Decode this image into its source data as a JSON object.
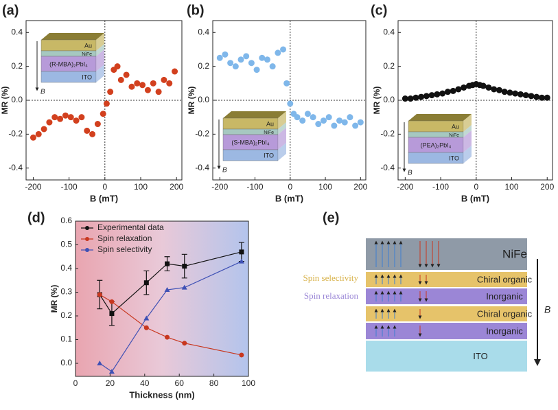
{
  "chart_data": [
    {
      "type": "scatter",
      "panel_label": "(a)",
      "xlabel": "B (mT)",
      "ylabel": "MR (%)",
      "color": "#d2401e",
      "x": [
        -200,
        -185,
        -170,
        -155,
        -140,
        -125,
        -110,
        -95,
        -80,
        -65,
        -50,
        -35,
        -20,
        -5,
        5,
        15,
        25,
        35,
        45,
        60,
        75,
        90,
        105,
        120,
        135,
        150,
        165,
        180,
        195
      ],
      "values": [
        -0.22,
        -0.2,
        -0.17,
        -0.13,
        -0.1,
        -0.11,
        -0.09,
        -0.1,
        -0.12,
        -0.1,
        -0.18,
        -0.2,
        -0.14,
        -0.08,
        -0.02,
        0.05,
        0.18,
        0.2,
        0.12,
        0.15,
        0.08,
        0.1,
        0.09,
        0.06,
        0.1,
        0.05,
        0.12,
        0.1,
        0.17
      ],
      "xlim": [
        -220,
        215
      ],
      "ylim": [
        -0.47,
        0.47
      ],
      "xticks": [
        -200,
        -100,
        0,
        100,
        200
      ],
      "yticks": [
        -0.4,
        -0.2,
        {
          "value": 0,
          "label": "0.0"
        },
        0.2,
        0.4
      ],
      "inset": [
        "Au",
        "NiFe",
        "(R-MBA)₂PbI₄",
        "ITO",
        "B"
      ]
    },
    {
      "type": "scatter",
      "panel_label": "(b)",
      "xlabel": "B (mT)",
      "ylabel": "MR (%)",
      "color": "#7fb7ea",
      "x": [
        -200,
        -185,
        -170,
        -155,
        -140,
        -125,
        -110,
        -95,
        -80,
        -65,
        -50,
        -35,
        -20,
        -10,
        0,
        10,
        20,
        35,
        50,
        65,
        80,
        95,
        110,
        125,
        140,
        155,
        170,
        185,
        200
      ],
      "values": [
        0.25,
        0.27,
        0.22,
        0.2,
        0.24,
        0.26,
        0.22,
        0.18,
        0.25,
        0.24,
        0.2,
        0.28,
        0.3,
        0.1,
        -0.02,
        -0.08,
        -0.1,
        -0.12,
        -0.08,
        -0.1,
        -0.14,
        -0.12,
        -0.1,
        -0.15,
        -0.12,
        -0.13,
        -0.1,
        -0.15,
        -0.13
      ],
      "xlim": [
        -220,
        215
      ],
      "ylim": [
        -0.47,
        0.47
      ],
      "xticks": [
        -200,
        -100,
        0,
        100,
        200
      ],
      "yticks": [
        -0.4,
        -0.2,
        {
          "value": 0,
          "label": "0.0"
        },
        0.2,
        0.4
      ],
      "inset": [
        "Au",
        "NiFe",
        "(S-MBA)₂PbI₄",
        "ITO",
        "B"
      ]
    },
    {
      "type": "scatter",
      "panel_label": "(c)",
      "xlabel": "B (mT)",
      "ylabel": "MR (%)",
      "color": "#111111",
      "x": [
        -200,
        -185,
        -170,
        -155,
        -140,
        -125,
        -110,
        -95,
        -80,
        -65,
        -50,
        -35,
        -20,
        -10,
        0,
        10,
        20,
        35,
        50,
        65,
        80,
        95,
        110,
        125,
        140,
        155,
        170,
        185,
        200
      ],
      "values": [
        0.01,
        0.01,
        0.015,
        0.02,
        0.025,
        0.03,
        0.035,
        0.04,
        0.05,
        0.055,
        0.065,
        0.075,
        0.085,
        0.09,
        0.095,
        0.09,
        0.085,
        0.075,
        0.065,
        0.06,
        0.05,
        0.045,
        0.04,
        0.035,
        0.03,
        0.025,
        0.02,
        0.015,
        0.015
      ],
      "xlim": [
        -220,
        215
      ],
      "ylim": [
        -0.47,
        0.47
      ],
      "xticks": [
        -200,
        -100,
        0,
        100,
        200
      ],
      "yticks": [
        -0.4,
        -0.2,
        {
          "value": 0,
          "label": "0.0"
        },
        0.2,
        0.4
      ],
      "inset": [
        "Au",
        "NiFe",
        "(PEA)₂PbI₄",
        "ITO",
        "B"
      ]
    },
    {
      "type": "line",
      "panel_label": "(d)",
      "xlabel": "Thickness (nm)",
      "ylabel": "MR (%)",
      "xlim": [
        0,
        100
      ],
      "ylim": [
        -0.055,
        0.6
      ],
      "xticks": [
        0,
        20,
        40,
        60,
        80,
        100
      ],
      "yticks": [
        {
          "value": 0,
          "label": "0.0"
        },
        0.1,
        0.2,
        0.3,
        0.4,
        0.5,
        0.6
      ],
      "series": [
        {
          "name": "Experimental data",
          "color": "#111111",
          "marker": "square",
          "x": [
            14,
            21,
            41,
            53,
            63,
            96
          ],
          "values": [
            0.29,
            0.21,
            0.34,
            0.42,
            0.41,
            0.47
          ],
          "errors": [
            0.06,
            0.05,
            0.05,
            0.03,
            0.05,
            0.04
          ]
        },
        {
          "name": "Spin relaxation",
          "color": "#c8371f",
          "marker": "circle",
          "x": [
            14,
            21,
            41,
            53,
            63,
            96
          ],
          "values": [
            0.29,
            0.26,
            0.15,
            0.11,
            0.085,
            0.035
          ]
        },
        {
          "name": "Spin selectivity",
          "color": "#3f51b5",
          "marker": "triangle",
          "x": [
            14,
            21,
            41,
            53,
            63,
            96
          ],
          "values": [
            0,
            -0.035,
            0.19,
            0.31,
            0.32,
            0.43
          ]
        }
      ]
    }
  ],
  "diagram": {
    "panel_label": "(e)",
    "side_labels": [
      "Spin selectivity",
      "Spin relaxation"
    ],
    "field_label": "B",
    "layers": [
      "NiFe",
      "Chiral organic",
      "Inorganic",
      "Chiral organic",
      "Inorganic",
      "ITO"
    ]
  }
}
